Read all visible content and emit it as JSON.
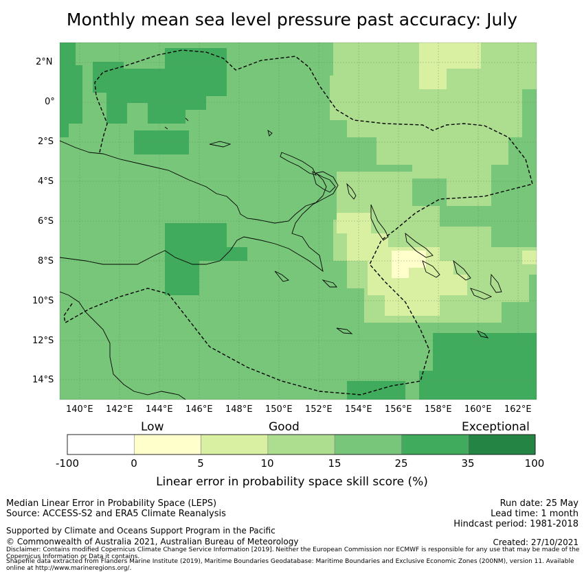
{
  "title": "Monthly mean sea level pressure past accuracy: July",
  "map": {
    "lon_labels": [
      "140°E",
      "142°E",
      "144°E",
      "146°E",
      "148°E",
      "150°E",
      "152°E",
      "154°E",
      "156°E",
      "158°E",
      "160°E",
      "162°E"
    ],
    "lat_labels": [
      "2°N",
      "0°",
      "2°S",
      "4°S",
      "6°S",
      "8°S",
      "10°S",
      "12°S",
      "14°S"
    ],
    "lon_range": [
      139,
      163
    ],
    "lat_range": [
      -15,
      3
    ]
  },
  "colorbar": {
    "categories": {
      "low": "Low",
      "good": "Good",
      "exceptional": "Exceptional"
    },
    "ticks": [
      "-100",
      "0",
      "5",
      "10",
      "15",
      "25",
      "35",
      "100"
    ],
    "colors": [
      "#ffffff",
      "#ffffcc",
      "#d9f0a3",
      "#addd8e",
      "#78c679",
      "#41ab5d",
      "#238443"
    ],
    "label": "Linear error in probability space skill score (%)"
  },
  "footer": {
    "left1": "Median Linear Error in Probability Space (LEPS)",
    "left2": "Source: ACCESS-S2 and ERA5 Climate Reanalysis",
    "support": "Supported by Climate and Oceans Support Program in the Pacific",
    "copyright": "© Commonwealth of Australia 2021, Australian Bureau of Meteorology",
    "run_date": "Run date: 25 May",
    "lead_time": "Lead time: 1 month",
    "hindcast": "Hindcast period: 1981-2018",
    "created": "Created: 27/10/2021",
    "disclaimer": "Disclaimer: Contains modified Copernicus Climate Change Service Information [2019]. Neither the European Commission nor ECMWF is responsible for any use that may be made of the Copernicus Information or Data it contains.",
    "shapefile": "Shapefile data extracted from Flanders Marine Institute (2019), Maritime Boundaries Geodatabase: Maritime Boundaries and Exclusive Economic Zones (200NM), version 11. Available online at http://www.marineregions.org/."
  }
}
